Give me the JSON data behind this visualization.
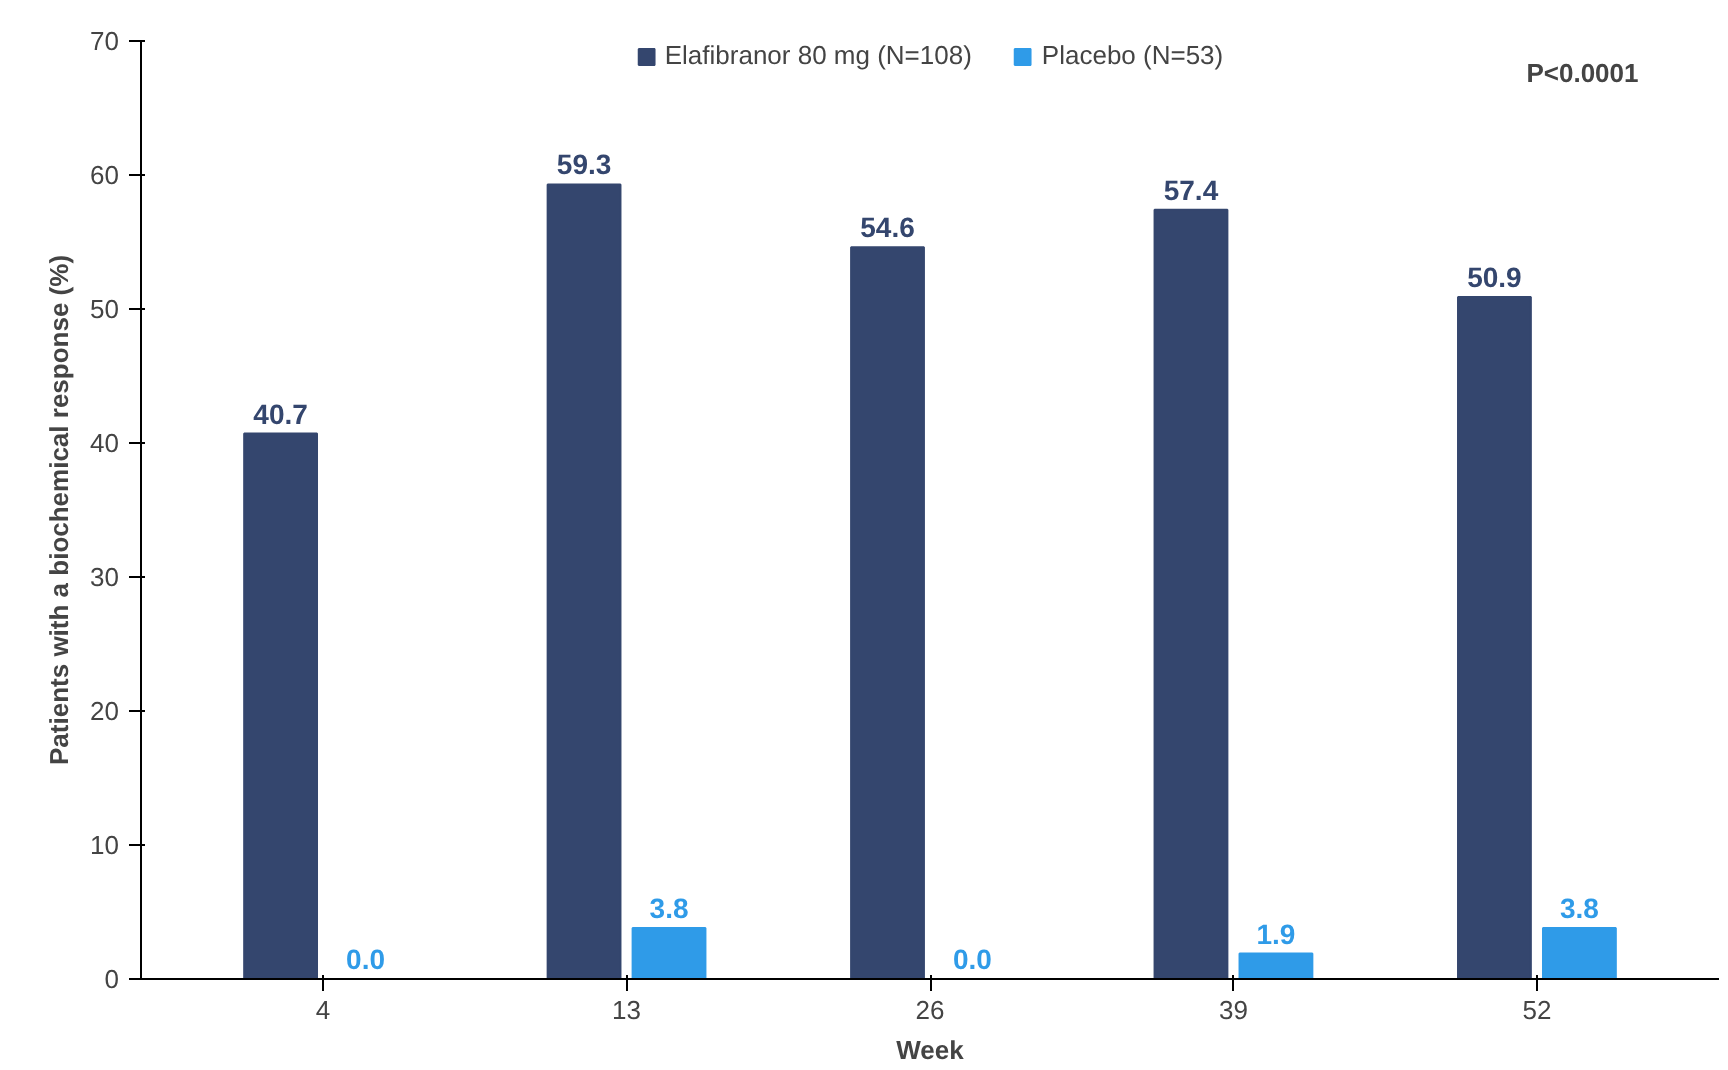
{
  "chart_data": {
    "type": "bar",
    "categories": [
      "4",
      "13",
      "26",
      "39",
      "52"
    ],
    "xlabel": "Week",
    "ylabel": "Patients with a biochemical response (%)",
    "series": [
      {
        "name": "Elafibranor 80 mg (N=108)",
        "color": "#34466e",
        "values": [
          40.7,
          59.3,
          54.6,
          57.4,
          50.9
        ],
        "value_labels": [
          "40.7",
          "59.3",
          "54.6",
          "57.4",
          "50.9"
        ]
      },
      {
        "name": "Placebo (N=53)",
        "color": "#2f9be8",
        "values": [
          0.0,
          3.8,
          0.0,
          1.9,
          3.8
        ],
        "value_labels": [
          "0.0",
          "3.8",
          "0.0",
          "1.9",
          "3.8"
        ]
      }
    ],
    "ylim": [
      0,
      70
    ],
    "yticks": [
      0,
      10,
      20,
      30,
      40,
      50,
      60,
      70
    ],
    "legend": "top",
    "grid": false,
    "annotations": [
      "P<0.0001"
    ]
  }
}
